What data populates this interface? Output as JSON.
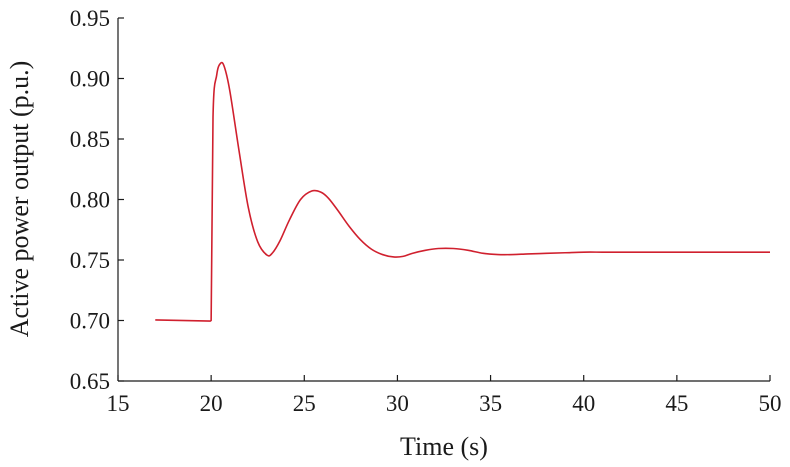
{
  "chart_data": {
    "type": "line",
    "title": "",
    "xlabel": "Time (s)",
    "ylabel": "Active power output (p.u.)",
    "xlim": [
      15,
      50
    ],
    "ylim": [
      0.65,
      0.95
    ],
    "xticks": [
      15,
      20,
      25,
      30,
      35,
      40,
      45,
      50
    ],
    "yticks": [
      0.65,
      0.7,
      0.75,
      0.8,
      0.85,
      0.9,
      0.95
    ],
    "xtick_labels": [
      "15",
      "20",
      "25",
      "30",
      "35",
      "40",
      "45",
      "50"
    ],
    "ytick_labels": [
      "0.65",
      "0.70",
      "0.75",
      "0.80",
      "0.85",
      "0.90",
      "0.95"
    ],
    "grid": false,
    "legend": "none",
    "series": [
      {
        "color": "#d0202e",
        "x": [
          17.0,
          19.95,
          20.0,
          20.1,
          20.3,
          20.5,
          20.7,
          21.0,
          21.5,
          22.0,
          22.5,
          23.0,
          23.3,
          23.7,
          24.2,
          24.8,
          25.4,
          25.9,
          26.3,
          26.8,
          27.4,
          28.0,
          28.6,
          29.2,
          29.8,
          30.3,
          30.8,
          31.5,
          32.2,
          33.0,
          33.8,
          34.6,
          35.4,
          36.2,
          37.0,
          38.0,
          39.0,
          40.0,
          41.0,
          42.0,
          43.0,
          44.0,
          45.0,
          46.0,
          47.0,
          48.0,
          49.0,
          50.0
        ],
        "y": [
          0.7005,
          0.6995,
          0.7,
          0.868,
          0.903,
          0.9125,
          0.91,
          0.89,
          0.84,
          0.793,
          0.765,
          0.754,
          0.756,
          0.766,
          0.783,
          0.8,
          0.807,
          0.806,
          0.801,
          0.791,
          0.778,
          0.767,
          0.759,
          0.7545,
          0.7525,
          0.753,
          0.7555,
          0.758,
          0.7595,
          0.7595,
          0.758,
          0.7555,
          0.7545,
          0.7545,
          0.755,
          0.7555,
          0.756,
          0.7565,
          0.7565,
          0.7565,
          0.7565,
          0.7565,
          0.7565,
          0.7565,
          0.7565,
          0.7565,
          0.7565,
          0.7565
        ]
      }
    ]
  }
}
